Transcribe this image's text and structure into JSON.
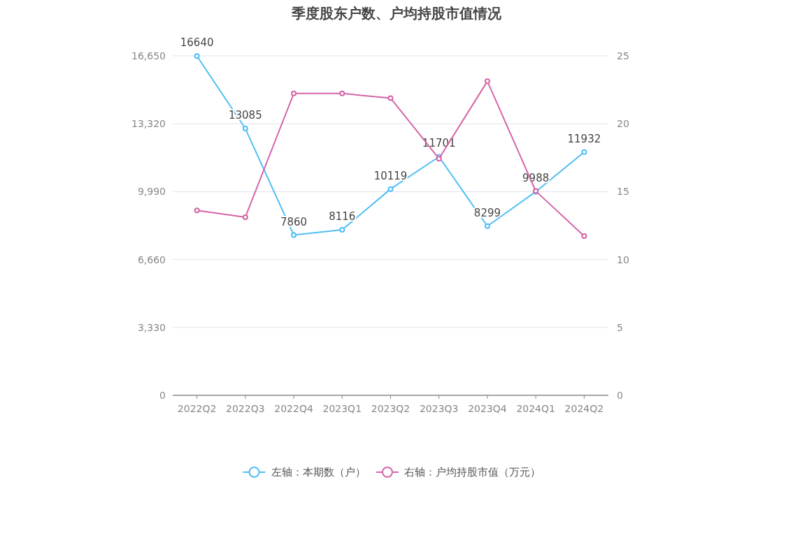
{
  "chart_data": {
    "type": "line",
    "title": "季度股东户数、户均持股市值情况",
    "categories": [
      "2022Q2",
      "2022Q3",
      "2022Q4",
      "2023Q1",
      "2023Q2",
      "2023Q3",
      "2023Q4",
      "2024Q1",
      "2024Q2"
    ],
    "series": [
      {
        "name": "左轴：本期数（户）",
        "color": "#4fbff5",
        "values": [
          16640,
          13085,
          7860,
          8116,
          10119,
          11701,
          8299,
          9988,
          11932
        ],
        "data_labels": true
      },
      {
        "name": "右轴：户均持股市值（万元）",
        "color": "#d565a8",
        "axis": "y2",
        "values": [
          13.62,
          13.12,
          22.23,
          22.23,
          21.89,
          17.43,
          23.13,
          15.04,
          11.73
        ]
      }
    ],
    "ylim": [
      0,
      16650
    ],
    "yticks": [
      0,
      {
        "value": 3330,
        "label": "3,330"
      },
      {
        "value": 6660,
        "label": "6,660"
      },
      {
        "value": 9990,
        "label": "9,990"
      },
      {
        "value": 13320,
        "label": "13,320"
      },
      {
        "value": 16650,
        "label": "16,650"
      }
    ],
    "y2lim": [
      0,
      25
    ],
    "y2ticks": [
      0,
      5,
      10,
      15,
      20,
      25
    ],
    "grid": "y",
    "legend": "bottom",
    "marker": "circle",
    "line_style": "solid"
  }
}
